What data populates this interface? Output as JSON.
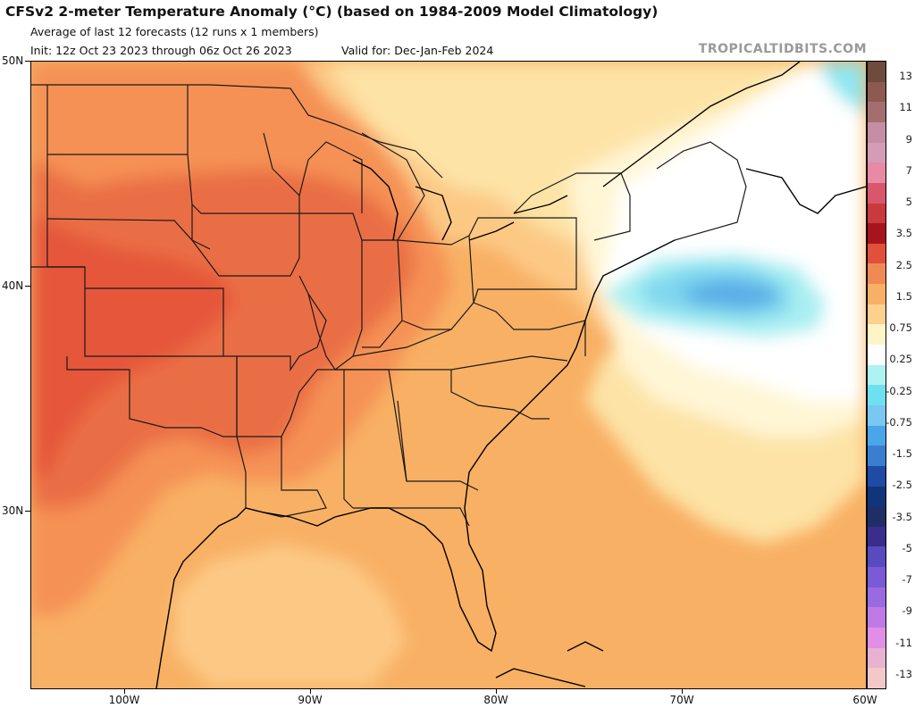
{
  "header": {
    "title": "CFSv2 2-meter Temperature Anomaly (°C) (based on 1984-2009 Model Climatology)",
    "subtitle": "Average of last 12 forecasts (12 runs x 1 members)",
    "init": "Init: 12z Oct 23 2023 through 06z Oct 26 2023",
    "valid": "Valid for: Dec-Jan-Feb 2024",
    "brand": "TROPICALTIDBITS.COM"
  },
  "map": {
    "lat_labels": [
      "50N",
      "40N",
      "30N"
    ],
    "lon_labels": [
      "100W",
      "90W",
      "80W",
      "70W",
      "60W"
    ]
  },
  "colorbar": {
    "labels": [
      "13",
      "11",
      "9",
      "7",
      "5",
      "3.5",
      "2.5",
      "1.5",
      "0.75",
      "0.25",
      "-0.25",
      "-0.75",
      "-1.5",
      "-2.5",
      "-3.5",
      "-5",
      "-7",
      "-9",
      "-11",
      "-13"
    ],
    "colors": [
      "#6e4b3c",
      "#8c5a50",
      "#a56e6e",
      "#c68ea2",
      "#d69cb6",
      "#e889a6",
      "#d9566b",
      "#c83a3e",
      "#a8141c",
      "#e0503a",
      "#f08a55",
      "#f7b065",
      "#fcd08e",
      "#fef4c5",
      "#ffffff",
      "#aef2f2",
      "#6fe0ef",
      "#78c8f2",
      "#4aa6e8",
      "#3a7ed2",
      "#1f4aa6",
      "#11357a",
      "#1f2e66",
      "#3a2d8c",
      "#5a4abf",
      "#7a5ad6",
      "#9a6ae0",
      "#c07ae6",
      "#e08ee6",
      "#e8b2d2",
      "#f4c8c8"
    ]
  }
}
